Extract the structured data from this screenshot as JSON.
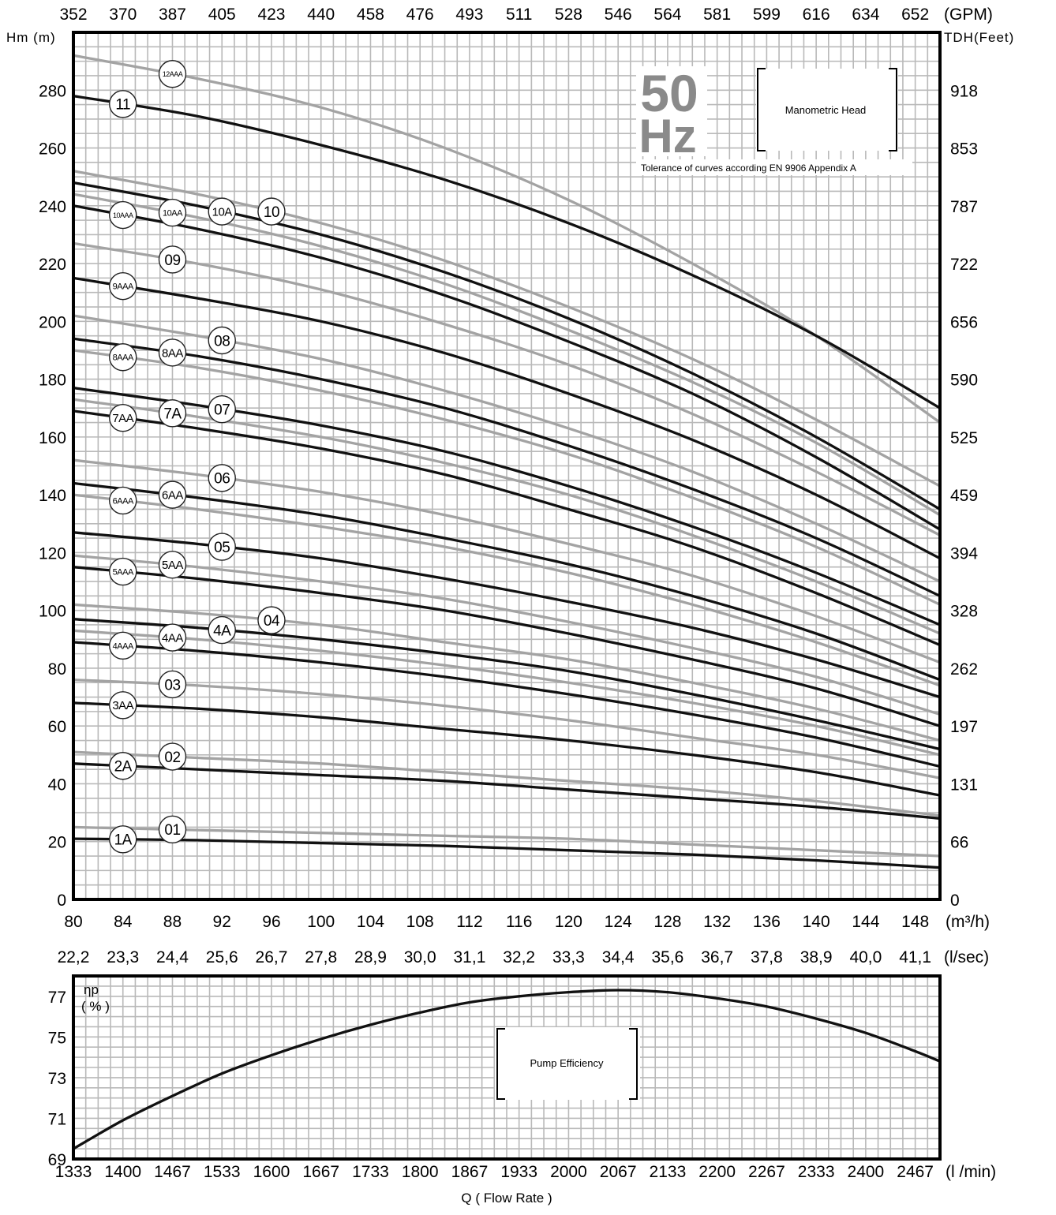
{
  "chart_data": [
    {
      "type": "line",
      "name_label": "Manometric Head",
      "frequency_value": "50",
      "frequency_unit": "Hz",
      "tolerance_note": "Tolerance of curves according EN 9906 Appendix A",
      "y_left_label": "Hm (m)",
      "y_right_label": "TDH(Feet)",
      "x_bottom_unit": "(m³/h)",
      "x_top_unit": "(GPM)",
      "x_secondary_unit": "(l/sec)",
      "x_range": [
        80,
        150
      ],
      "y_range": [
        0,
        300
      ],
      "grid": true,
      "x_ticks": [
        "80",
        "84",
        "88",
        "92",
        "96",
        "100",
        "104",
        "108",
        "112",
        "116",
        "120",
        "124",
        "128",
        "132",
        "136",
        "140",
        "144",
        "148"
      ],
      "x_tick_values": [
        80,
        84,
        88,
        92,
        96,
        100,
        104,
        108,
        112,
        116,
        120,
        124,
        128,
        132,
        136,
        140,
        144,
        148
      ],
      "gpm_ticks": [
        "352",
        "370",
        "387",
        "405",
        "423",
        "440",
        "458",
        "476",
        "493",
        "511",
        "528",
        "546",
        "564",
        "581",
        "599",
        "616",
        "634",
        "652"
      ],
      "lsec_ticks": [
        "22,2",
        "23,3",
        "24,4",
        "25,6",
        "26,7",
        "27,8",
        "28,9",
        "30,0",
        "31,1",
        "32,2",
        "33,3",
        "34,4",
        "35,6",
        "36,7",
        "37,8",
        "38,9",
        "40,0",
        "41,1"
      ],
      "y_ticks": [
        "0",
        "20",
        "40",
        "60",
        "80",
        "100",
        "120",
        "140",
        "160",
        "180",
        "200",
        "220",
        "240",
        "260",
        "280"
      ],
      "y_tick_values": [
        0,
        20,
        40,
        60,
        80,
        100,
        120,
        140,
        160,
        180,
        200,
        220,
        240,
        260,
        280
      ],
      "feet_ticks": [
        "0",
        "66",
        "131",
        "197",
        "262",
        "328",
        "394",
        "459",
        "525",
        "590",
        "656",
        "722",
        "787",
        "853",
        "918"
      ],
      "series": [
        {
          "name": "12AAA",
          "color": "gray",
          "label_x": 88,
          "x": [
            80,
            90,
            100,
            110,
            120,
            130,
            140,
            150
          ],
          "y": [
            292,
            284,
            274,
            260,
            242,
            220,
            195,
            165
          ]
        },
        {
          "name": "11",
          "color": "dark",
          "label_x": 84,
          "x": [
            80,
            90,
            100,
            110,
            120,
            130,
            140,
            150
          ],
          "y": [
            278,
            271,
            261,
            249,
            234,
            216,
            195,
            170
          ]
        },
        {
          "name": "10",
          "color": "gray",
          "label_x": 96,
          "x": [
            80,
            90,
            100,
            110,
            120,
            130,
            140,
            150
          ],
          "y": [
            252,
            244,
            234,
            221,
            205,
            187,
            166,
            143
          ]
        },
        {
          "name": "10A",
          "color": "dark",
          "label_x": 92,
          "x": [
            80,
            90,
            100,
            110,
            120,
            130,
            140,
            150
          ],
          "y": [
            248,
            240,
            230,
            217,
            201,
            182,
            160,
            135
          ]
        },
        {
          "name": "10AA",
          "color": "gray",
          "label_x": 88,
          "x": [
            80,
            90,
            100,
            110,
            120,
            130,
            140,
            150
          ],
          "y": [
            244,
            236,
            226,
            213,
            197,
            179,
            158,
            133
          ]
        },
        {
          "name": "10AAA",
          "color": "dark",
          "label_x": 84,
          "x": [
            80,
            90,
            100,
            110,
            120,
            130,
            140,
            150
          ],
          "y": [
            240,
            232,
            222,
            209,
            193,
            175,
            153,
            128
          ]
        },
        {
          "name": "09",
          "color": "gray",
          "label_x": 88,
          "x": [
            80,
            90,
            100,
            110,
            120,
            130,
            140,
            150
          ],
          "y": [
            227,
            220,
            211,
            199,
            185,
            168,
            148,
            126
          ]
        },
        {
          "name": "9AAA",
          "color": "dark",
          "label_x": 84,
          "x": [
            80,
            90,
            100,
            110,
            120,
            130,
            140,
            150
          ],
          "y": [
            215,
            208,
            200,
            189,
            175,
            159,
            140,
            118
          ]
        },
        {
          "name": "08",
          "color": "gray",
          "label_x": 92,
          "x": [
            80,
            90,
            100,
            110,
            120,
            130,
            140,
            150
          ],
          "y": [
            202,
            195,
            187,
            176,
            163,
            148,
            130,
            110
          ]
        },
        {
          "name": "8AA",
          "color": "dark",
          "label_x": 88,
          "x": [
            80,
            90,
            100,
            110,
            120,
            130,
            140,
            150
          ],
          "y": [
            194,
            188,
            180,
            170,
            157,
            142,
            125,
            105
          ]
        },
        {
          "name": "8AAA",
          "color": "gray",
          "label_x": 84,
          "x": [
            80,
            90,
            100,
            110,
            120,
            130,
            140,
            150
          ],
          "y": [
            190,
            184,
            176,
            166,
            154,
            139,
            122,
            102
          ]
        },
        {
          "name": "07",
          "color": "dark",
          "label_x": 92,
          "x": [
            80,
            90,
            100,
            110,
            120,
            130,
            140,
            150
          ],
          "y": [
            177,
            171,
            164,
            155,
            143,
            129,
            113,
            95
          ]
        },
        {
          "name": "7A",
          "color": "gray",
          "label_x": 88,
          "x": [
            80,
            90,
            100,
            110,
            120,
            130,
            140,
            150
          ],
          "y": [
            173,
            167,
            160,
            151,
            140,
            126,
            110,
            92
          ]
        },
        {
          "name": "7AA",
          "color": "dark",
          "label_x": 84,
          "x": [
            80,
            90,
            100,
            110,
            120,
            130,
            140,
            150
          ],
          "y": [
            169,
            163,
            156,
            147,
            135,
            122,
            106,
            88
          ]
        },
        {
          "name": "06",
          "color": "gray",
          "label_x": 92,
          "x": [
            80,
            90,
            100,
            110,
            120,
            130,
            140,
            150
          ],
          "y": [
            152,
            147,
            141,
            133,
            123,
            112,
            98,
            82
          ]
        },
        {
          "name": "6AA",
          "color": "dark",
          "label_x": 88,
          "x": [
            80,
            90,
            100,
            110,
            120,
            130,
            140,
            150
          ],
          "y": [
            144,
            139,
            133,
            125,
            116,
            105,
            92,
            76
          ]
        },
        {
          "name": "6AAA",
          "color": "gray",
          "label_x": 84,
          "x": [
            80,
            90,
            100,
            110,
            120,
            130,
            140,
            150
          ],
          "y": [
            140,
            135,
            129,
            122,
            113,
            102,
            89,
            74
          ]
        },
        {
          "name": "05",
          "color": "dark",
          "label_x": 92,
          "x": [
            80,
            90,
            100,
            110,
            120,
            130,
            140,
            150
          ],
          "y": [
            127,
            123,
            118,
            111,
            103,
            94,
            83,
            70
          ]
        },
        {
          "name": "5AA",
          "color": "gray",
          "label_x": 88,
          "x": [
            80,
            90,
            100,
            110,
            120,
            130,
            140,
            150
          ],
          "y": [
            119,
            115,
            110,
            104,
            96,
            87,
            77,
            64
          ]
        },
        {
          "name": "5AAA",
          "color": "dark",
          "label_x": 84,
          "x": [
            80,
            90,
            100,
            110,
            120,
            130,
            140,
            150
          ],
          "y": [
            115,
            111,
            106,
            100,
            92,
            83,
            73,
            60
          ]
        },
        {
          "name": "04",
          "color": "gray",
          "label_x": 96,
          "x": [
            80,
            90,
            100,
            110,
            120,
            130,
            140,
            150
          ],
          "y": [
            102,
            99,
            95,
            89,
            83,
            75,
            66,
            55
          ]
        },
        {
          "name": "4A",
          "color": "dark",
          "label_x": 92,
          "x": [
            80,
            90,
            100,
            110,
            120,
            130,
            140,
            150
          ],
          "y": [
            97,
            94,
            90,
            85,
            79,
            71,
            62,
            52
          ]
        },
        {
          "name": "4AA",
          "color": "gray",
          "label_x": 88,
          "x": [
            80,
            90,
            100,
            110,
            120,
            130,
            140,
            150
          ],
          "y": [
            93,
            90,
            86,
            81,
            75,
            68,
            60,
            50
          ]
        },
        {
          "name": "4AAA",
          "color": "dark",
          "label_x": 84,
          "x": [
            80,
            90,
            100,
            110,
            120,
            130,
            140,
            150
          ],
          "y": [
            89,
            86,
            82,
            77,
            71,
            64,
            56,
            46
          ]
        },
        {
          "name": "03",
          "color": "gray",
          "label_x": 88,
          "x": [
            80,
            90,
            100,
            110,
            120,
            130,
            140,
            150
          ],
          "y": [
            76,
            74,
            71,
            67,
            62,
            56,
            50,
            42
          ]
        },
        {
          "name": "3AA",
          "color": "dark",
          "label_x": 84,
          "x": [
            80,
            90,
            100,
            110,
            120,
            130,
            140,
            150
          ],
          "y": [
            68,
            66,
            63,
            59,
            55,
            50,
            44,
            36
          ]
        },
        {
          "name": "02",
          "color": "gray",
          "label_x": 88,
          "x": [
            80,
            90,
            100,
            110,
            120,
            130,
            140,
            150
          ],
          "y": [
            51,
            49,
            47,
            44,
            41,
            38,
            34,
            29
          ]
        },
        {
          "name": "2A",
          "color": "dark",
          "label_x": 84,
          "x": [
            80,
            90,
            100,
            110,
            120,
            130,
            140,
            150
          ],
          "y": [
            47,
            45,
            43,
            41,
            38,
            35,
            32,
            28
          ]
        },
        {
          "name": "01",
          "color": "gray",
          "label_x": 88,
          "x": [
            80,
            90,
            100,
            110,
            120,
            130,
            140,
            150
          ],
          "y": [
            25,
            24,
            23,
            22,
            21,
            19,
            17,
            15
          ]
        },
        {
          "name": "1A",
          "color": "dark",
          "label_x": 84,
          "x": [
            80,
            90,
            100,
            110,
            120,
            130,
            140,
            150
          ],
          "y": [
            21,
            20.5,
            19.5,
            18.5,
            17,
            15.5,
            13.5,
            11
          ]
        }
      ]
    },
    {
      "type": "line",
      "name_label": "Pump Efficiency",
      "y_label": "ηp",
      "y_unit": "( % )",
      "x_unit": "(l /min)",
      "x_title": "Q     ( Flow Rate )",
      "x_range": [
        80,
        150
      ],
      "y_range": [
        69,
        78
      ],
      "grid": true,
      "y_ticks": [
        "69",
        "71",
        "73",
        "75",
        "77"
      ],
      "y_tick_values": [
        69,
        71,
        73,
        75,
        77
      ],
      "lmin_ticks": [
        "1333",
        "1400",
        "1467",
        "1533",
        "1600",
        "1667",
        "1733",
        "1800",
        "1867",
        "1933",
        "2000",
        "2067",
        "2133",
        "2200",
        "2267",
        "2333",
        "2400",
        "2467"
      ],
      "series": [
        {
          "x": [
            80,
            84,
            88,
            92,
            96,
            100,
            104,
            108,
            112,
            116,
            120,
            124,
            128,
            132,
            136,
            140,
            144,
            148,
            150
          ],
          "y": [
            69.5,
            70.9,
            72.1,
            73.2,
            74.1,
            74.9,
            75.6,
            76.2,
            76.7,
            77.0,
            77.2,
            77.3,
            77.2,
            76.9,
            76.5,
            75.9,
            75.2,
            74.3,
            73.8
          ]
        }
      ]
    }
  ]
}
